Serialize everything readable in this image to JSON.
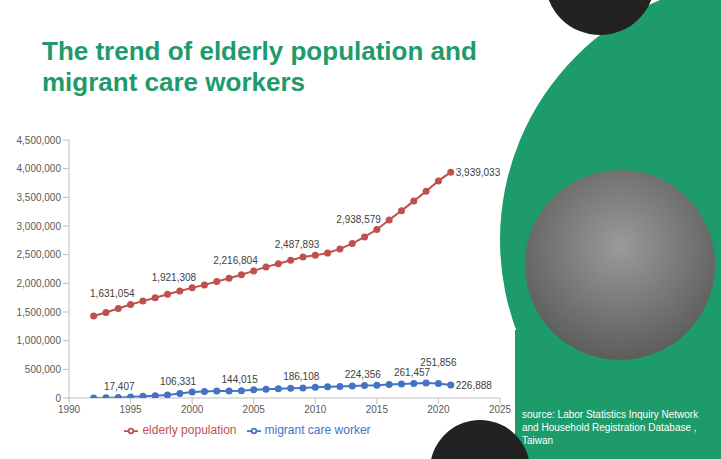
{
  "title": "The trend of elderly population and migrant care workers",
  "source": "source: Labor Statistics Inquiry Network and Household Registration Database , Taiwan",
  "chart_data": {
    "type": "line",
    "x": [
      1992,
      1993,
      1994,
      1995,
      1996,
      1997,
      1998,
      1999,
      2000,
      2001,
      2002,
      2003,
      2004,
      2005,
      2006,
      2007,
      2008,
      2009,
      2010,
      2011,
      2012,
      2013,
      2014,
      2015,
      2016,
      2017,
      2018,
      2019,
      2020,
      2021
    ],
    "series": [
      {
        "name": "migrant care worker",
        "color": "#4472c4",
        "marker": "circle",
        "values": [
          1000,
          5000,
          10000,
          17407,
          29000,
          38000,
          54000,
          78000,
          106331,
          113000,
          121000,
          120000,
          128000,
          144015,
          152000,
          160000,
          168000,
          175000,
          186108,
          197000,
          202000,
          210000,
          220000,
          224356,
          237000,
          244000,
          253000,
          261457,
          251856,
          226888
        ],
        "value_labels": [
          null,
          null,
          null,
          "17,407",
          null,
          null,
          null,
          null,
          "106,331",
          null,
          null,
          null,
          null,
          "144,015",
          null,
          null,
          null,
          null,
          "186,108",
          null,
          null,
          null,
          null,
          "224,356",
          null,
          null,
          null,
          "261,457",
          "251,856",
          "226,888"
        ]
      },
      {
        "name": "elderly population",
        "color": "#c0504d",
        "marker": "circle",
        "values": [
          1430000,
          1490000,
          1560000,
          1631054,
          1690000,
          1750000,
          1810000,
          1865000,
          1921308,
          1973000,
          2031000,
          2088000,
          2150000,
          2216804,
          2287000,
          2343000,
          2402000,
          2458000,
          2487893,
          2528000,
          2600000,
          2694000,
          2809000,
          2938579,
          3106000,
          3268000,
          3434000,
          3607000,
          3787000,
          3939033
        ],
        "value_labels": [
          null,
          null,
          null,
          "1,631,054",
          null,
          null,
          null,
          null,
          "1,921,308",
          null,
          null,
          null,
          null,
          "2,216,804",
          null,
          null,
          null,
          null,
          "2,487,893",
          null,
          null,
          null,
          null,
          "2,938,579",
          null,
          null,
          null,
          null,
          null,
          "3,939,033"
        ]
      }
    ],
    "xlim": [
      1990,
      2025
    ],
    "xticks": [
      1990,
      1995,
      2000,
      2005,
      2010,
      2015,
      2020,
      2025
    ],
    "ylim": [
      0,
      4500000
    ],
    "yticks": [
      0,
      {
        "value": 500000,
        "label": "500,000"
      },
      {
        "value": 1000000,
        "label": "1,000,000"
      },
      {
        "value": 1500000,
        "label": "1,500,000"
      },
      {
        "value": 2000000,
        "label": "2,000,000"
      },
      {
        "value": 2500000,
        "label": "2,500,000"
      },
      {
        "value": 3000000,
        "label": "3,000,000"
      },
      {
        "value": 3500000,
        "label": "3,500,000"
      },
      {
        "value": 4000000,
        "label": "4,000,000"
      },
      {
        "value": 4500000,
        "label": "4,500,000"
      }
    ],
    "grid": false,
    "legend": "bottom",
    "data_labels": true
  }
}
